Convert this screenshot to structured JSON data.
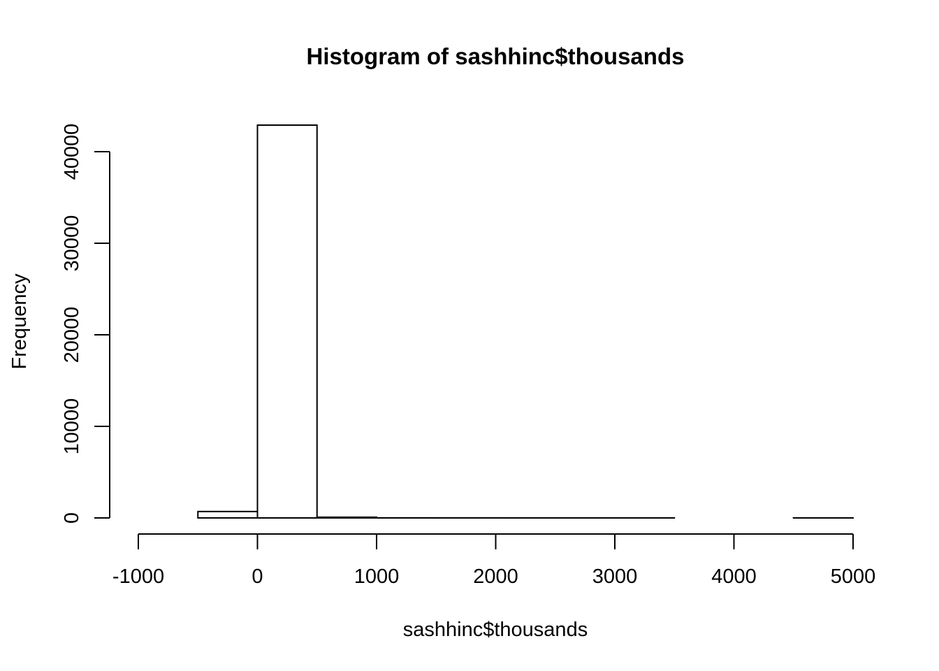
{
  "chart_data": {
    "type": "bar",
    "title": "Histogram of sashhinc$thousands",
    "xlabel": "sashhinc$thousands",
    "ylabel": "Frequency",
    "xlim": [
      -1000,
      5000
    ],
    "ylim": [
      0,
      43000
    ],
    "x_ticks": [
      "-1000",
      "0",
      "1000",
      "2000",
      "3000",
      "4000",
      "5000"
    ],
    "y_ticks": [
      "0",
      "10000",
      "20000",
      "30000",
      "40000"
    ],
    "bins": [
      {
        "start": -1000,
        "end": -500,
        "count": 0
      },
      {
        "start": -500,
        "end": 0,
        "count": 700
      },
      {
        "start": 0,
        "end": 500,
        "count": 42900
      },
      {
        "start": 500,
        "end": 1000,
        "count": 80
      },
      {
        "start": 1000,
        "end": 1500,
        "count": 8
      },
      {
        "start": 1500,
        "end": 2000,
        "count": 3
      },
      {
        "start": 2000,
        "end": 2500,
        "count": 2
      },
      {
        "start": 2500,
        "end": 3000,
        "count": 1
      },
      {
        "start": 3000,
        "end": 3500,
        "count": 1
      },
      {
        "start": 3500,
        "end": 4000,
        "count": 0
      },
      {
        "start": 4000,
        "end": 4500,
        "count": 0
      },
      {
        "start": 4500,
        "end": 5000,
        "count": 1
      }
    ],
    "grid": false,
    "legend": "none",
    "bar_fill": "#ffffff",
    "bar_stroke": "#000000"
  }
}
